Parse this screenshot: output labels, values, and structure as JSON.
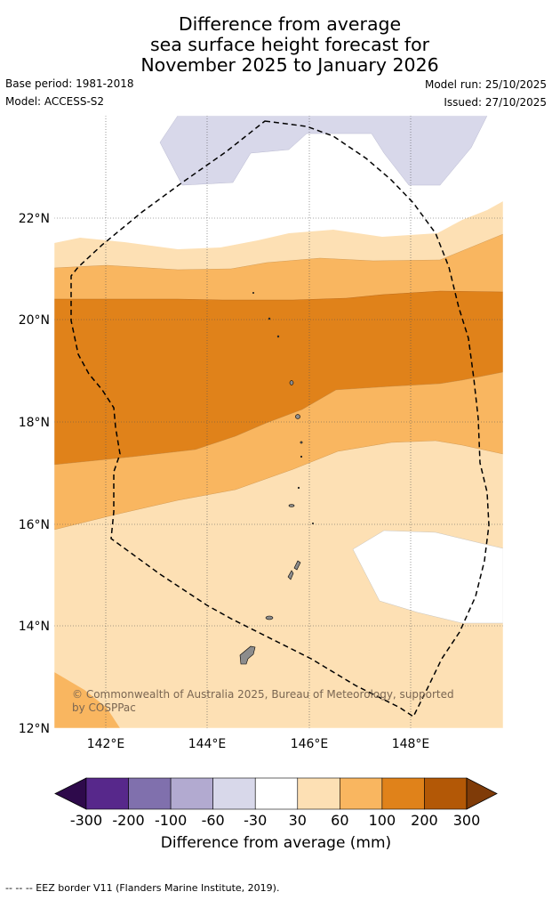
{
  "map": {
    "title_lines": [
      "Difference from average",
      "sea surface height forecast for",
      "November 2025 to January 2026"
    ],
    "base_period": "Base period: 1981-2018",
    "model": "Model: ACCESS-S2",
    "model_run": "Model run: 25/10/2025",
    "issued": "Issued: 27/10/2025",
    "lat_labels": [
      "22°N",
      "20°N",
      "18°N",
      "16°N",
      "14°N",
      "12°N"
    ],
    "lon_labels": [
      "142°E",
      "144°E",
      "146°E",
      "148°E"
    ],
    "copyright_lines": [
      "© Commonwealth of Australia 2025, Bureau of Meteorology, supported",
      "by COSPPac"
    ],
    "footnote": "--  --  -- EEZ border V11 (Flanders Marine Institute, 2019)."
  },
  "colorbar": {
    "label": "Difference from average (mm)",
    "ticks": [
      "-300",
      "-200",
      "-100",
      "-60",
      "-30",
      "30",
      "60",
      "100",
      "200",
      "300"
    ],
    "colors": [
      "#2e0a4b",
      "#57288b",
      "#8070ad",
      "#b2aad0",
      "#d8d8ea",
      "#ffffff",
      "#fde0b4",
      "#f9b660",
      "#e0821a",
      "#b35806",
      "#7f3b08"
    ]
  }
}
